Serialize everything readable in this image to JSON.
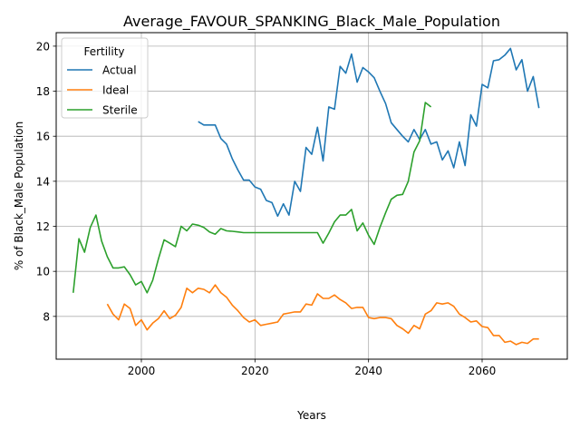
{
  "chart_data": {
    "type": "line",
    "title": "Average_FAVOUR_SPANKING_Black_Male_Population",
    "xlabel": "Years",
    "ylabel": "% of Black_Male Population",
    "xlim": [
      1985,
      2075
    ],
    "ylim": [
      6.1,
      20.6
    ],
    "xticks": [
      2000,
      2020,
      2040,
      2060
    ],
    "yticks": [
      8,
      10,
      12,
      14,
      16,
      18,
      20
    ],
    "grid": true,
    "legend": {
      "title": "Fertility",
      "placement": "top-left"
    },
    "series": [
      {
        "name": "Actual",
        "color": "#1f77b4",
        "x": [
          2010,
          2011,
          2012,
          2013,
          2014,
          2015,
          2016,
          2017,
          2018,
          2019,
          2020,
          2021,
          2022,
          2023,
          2024,
          2025,
          2026,
          2027,
          2028,
          2029,
          2030,
          2031,
          2032,
          2033,
          2034,
          2035,
          2036,
          2037,
          2038,
          2039,
          2040,
          2041,
          2042,
          2043,
          2044,
          2045,
          2046,
          2047,
          2048,
          2049,
          2050,
          2051,
          2052,
          2053,
          2054,
          2055,
          2056,
          2057,
          2058,
          2059,
          2060,
          2061,
          2062,
          2063,
          2064,
          2065,
          2066,
          2067,
          2068,
          2069,
          2070
        ],
        "y": [
          16.65,
          16.5,
          16.5,
          16.5,
          15.9,
          15.65,
          15.0,
          14.5,
          14.05,
          14.05,
          13.75,
          13.65,
          13.15,
          13.05,
          12.45,
          13.0,
          12.5,
          14.0,
          13.55,
          15.5,
          15.2,
          16.4,
          14.9,
          17.3,
          17.2,
          19.1,
          18.8,
          19.65,
          18.4,
          19.05,
          18.85,
          18.6,
          18.0,
          17.45,
          16.6,
          16.3,
          16.0,
          15.75,
          16.3,
          15.85,
          16.3,
          15.65,
          15.75,
          14.95,
          15.35,
          14.6,
          15.75,
          14.7,
          16.95,
          16.45,
          18.3,
          18.15,
          19.35,
          19.4,
          19.6,
          19.9,
          18.95,
          19.4,
          18.0,
          18.65,
          17.25
        ]
      },
      {
        "name": "Ideal",
        "color": "#ff7f0e",
        "x": [
          1994,
          1995,
          1996,
          1997,
          1998,
          1999,
          2000,
          2001,
          2002,
          2003,
          2004,
          2005,
          2006,
          2007,
          2008,
          2009,
          2010,
          2011,
          2012,
          2013,
          2014,
          2015,
          2016,
          2017,
          2018,
          2019,
          2020,
          2021,
          2022,
          2023,
          2024,
          2025,
          2026,
          2027,
          2028,
          2029,
          2030,
          2031,
          2032,
          2033,
          2034,
          2035,
          2036,
          2037,
          2038,
          2039,
          2040,
          2041,
          2042,
          2043,
          2044,
          2045,
          2046,
          2047,
          2048,
          2049,
          2050,
          2051,
          2052,
          2053,
          2054,
          2055,
          2056,
          2057,
          2058,
          2059,
          2060,
          2061,
          2062,
          2063,
          2064,
          2065,
          2066,
          2067,
          2068,
          2069,
          2070
        ],
        "y": [
          8.55,
          8.1,
          7.85,
          8.55,
          8.35,
          7.6,
          7.85,
          7.4,
          7.7,
          7.9,
          8.25,
          7.9,
          8.05,
          8.4,
          9.25,
          9.05,
          9.25,
          9.2,
          9.05,
          9.4,
          9.05,
          8.85,
          8.5,
          8.25,
          7.95,
          7.75,
          7.85,
          7.6,
          7.65,
          7.7,
          7.75,
          8.1,
          8.15,
          8.2,
          8.2,
          8.55,
          8.5,
          9.0,
          8.8,
          8.8,
          8.95,
          8.75,
          8.6,
          8.35,
          8.4,
          8.4,
          7.95,
          7.9,
          7.95,
          7.95,
          7.9,
          7.6,
          7.45,
          7.25,
          7.6,
          7.45,
          8.1,
          8.25,
          8.6,
          8.55,
          8.6,
          8.45,
          8.1,
          7.95,
          7.75,
          7.8,
          7.55,
          7.5,
          7.15,
          7.15,
          6.85,
          6.9,
          6.75,
          6.85,
          6.8,
          7.0,
          7.0
        ]
      },
      {
        "name": "Sterile",
        "color": "#2ca02c",
        "x": [
          1988,
          1989,
          1990,
          1991,
          1992,
          1993,
          1994,
          1995,
          1996,
          1997,
          1998,
          1999,
          2000,
          2001,
          2002,
          2003,
          2004,
          2005,
          2006,
          2007,
          2008,
          2009,
          2010,
          2011,
          2012,
          2013,
          2014,
          2015,
          2016,
          2017,
          2018,
          2019,
          2020,
          2021,
          2022,
          2023,
          2024,
          2025,
          2026,
          2027,
          2028,
          2029,
          2030,
          2031,
          2032,
          2033,
          2034,
          2035,
          2036,
          2037,
          2038,
          2039,
          2040,
          2041,
          2042,
          2043,
          2044,
          2045,
          2046,
          2047,
          2048,
          2049,
          2050,
          2051
        ],
        "y": [
          9.05,
          11.45,
          10.85,
          11.95,
          12.5,
          11.35,
          10.65,
          10.15,
          10.15,
          10.2,
          9.85,
          9.4,
          9.55,
          9.05,
          9.6,
          10.55,
          11.4,
          11.25,
          11.1,
          12.0,
          11.8,
          12.1,
          12.05,
          11.95,
          11.75,
          11.65,
          11.9,
          11.8,
          11.78,
          11.75,
          11.72,
          11.72,
          11.72,
          11.72,
          11.72,
          11.72,
          11.72,
          11.72,
          11.72,
          11.72,
          11.72,
          11.72,
          11.72,
          11.72,
          11.25,
          11.7,
          12.2,
          12.5,
          12.5,
          12.75,
          11.8,
          12.15,
          11.6,
          11.2,
          11.95,
          12.6,
          13.2,
          13.38,
          13.42,
          14.0,
          15.3,
          15.8,
          17.5,
          17.3
        ]
      }
    ]
  }
}
